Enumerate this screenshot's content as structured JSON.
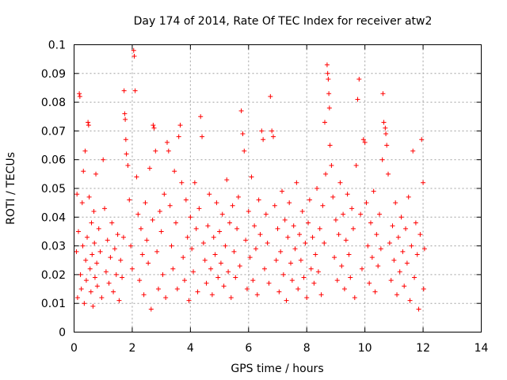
{
  "chart_data": {
    "type": "scatter",
    "title": "Day 174 of 2014, Rate Of TEC Index for receiver atw2",
    "xlabel": "GPS time / hours",
    "ylabel": "ROTI / TECUs",
    "xlim": [
      0,
      14
    ],
    "ylim": [
      0,
      0.1
    ],
    "xticks": [
      0,
      2,
      4,
      6,
      8,
      10,
      12,
      14
    ],
    "xtick_labels": [
      "0",
      "2",
      "4",
      "6",
      "8",
      "10",
      "12",
      "14"
    ],
    "yticks": [
      0,
      0.01,
      0.02,
      0.03,
      0.04,
      0.05,
      0.06,
      0.07,
      0.08,
      0.09,
      0.1
    ],
    "ytick_labels": [
      "0",
      "0.01",
      "0.02",
      "0.03",
      "0.04",
      "0.05",
      "0.06",
      "0.07",
      "0.08",
      "0.09",
      "0.1"
    ],
    "grid": true,
    "marker": "+",
    "color": "#ff0000",
    "series": [
      {
        "name": "ROTI",
        "points": [
          [
            0.08,
            0.028
          ],
          [
            0.1,
            0.048
          ],
          [
            0.12,
            0.012
          ],
          [
            0.15,
            0.035
          ],
          [
            0.18,
            0.083
          ],
          [
            0.2,
            0.082
          ],
          [
            0.22,
            0.02
          ],
          [
            0.25,
            0.015
          ],
          [
            0.28,
            0.045
          ],
          [
            0.3,
            0.03
          ],
          [
            0.32,
            0.056
          ],
          [
            0.35,
            0.01
          ],
          [
            0.38,
            0.063
          ],
          [
            0.4,
            0.025
          ],
          [
            0.42,
            0.018
          ],
          [
            0.45,
            0.033
          ],
          [
            0.48,
            0.073
          ],
          [
            0.5,
            0.072
          ],
          [
            0.52,
            0.047
          ],
          [
            0.55,
            0.022
          ],
          [
            0.58,
            0.014
          ],
          [
            0.6,
            0.038
          ],
          [
            0.62,
            0.027
          ],
          [
            0.65,
            0.009
          ],
          [
            0.68,
            0.042
          ],
          [
            0.7,
            0.031
          ],
          [
            0.72,
            0.019
          ],
          [
            0.75,
            0.055
          ],
          [
            0.78,
            0.024
          ],
          [
            0.8,
            0.016
          ],
          [
            0.85,
            0.036
          ],
          [
            0.9,
            0.028
          ],
          [
            0.95,
            0.012
          ],
          [
            1.0,
            0.06
          ],
          [
            1.05,
            0.043
          ],
          [
            1.1,
            0.021
          ],
          [
            1.15,
            0.032
          ],
          [
            1.2,
            0.017
          ],
          [
            1.25,
            0.026
          ],
          [
            1.3,
            0.038
          ],
          [
            1.35,
            0.014
          ],
          [
            1.4,
            0.029
          ],
          [
            1.45,
            0.02
          ],
          [
            1.5,
            0.034
          ],
          [
            1.55,
            0.011
          ],
          [
            1.6,
            0.025
          ],
          [
            1.65,
            0.019
          ],
          [
            1.7,
            0.033
          ],
          [
            1.72,
            0.084
          ],
          [
            1.74,
            0.076
          ],
          [
            1.76,
            0.074
          ],
          [
            1.78,
            0.067
          ],
          [
            1.8,
            0.062
          ],
          [
            1.85,
            0.058
          ],
          [
            1.9,
            0.046
          ],
          [
            1.95,
            0.03
          ],
          [
            2.0,
            0.022
          ],
          [
            2.05,
            0.098
          ],
          [
            2.07,
            0.096
          ],
          [
            2.1,
            0.084
          ],
          [
            2.15,
            0.054
          ],
          [
            2.2,
            0.041
          ],
          [
            2.25,
            0.018
          ],
          [
            2.3,
            0.036
          ],
          [
            2.35,
            0.027
          ],
          [
            2.4,
            0.013
          ],
          [
            2.45,
            0.045
          ],
          [
            2.5,
            0.032
          ],
          [
            2.55,
            0.024
          ],
          [
            2.6,
            0.057
          ],
          [
            2.65,
            0.008
          ],
          [
            2.7,
            0.039
          ],
          [
            2.72,
            0.072
          ],
          [
            2.75,
            0.071
          ],
          [
            2.8,
            0.063
          ],
          [
            2.85,
            0.028
          ],
          [
            2.9,
            0.015
          ],
          [
            2.95,
            0.042
          ],
          [
            3.0,
            0.035
          ],
          [
            3.05,
            0.02
          ],
          [
            3.1,
            0.048
          ],
          [
            3.15,
            0.012
          ],
          [
            3.2,
            0.066
          ],
          [
            3.25,
            0.063
          ],
          [
            3.3,
            0.044
          ],
          [
            3.35,
            0.03
          ],
          [
            3.4,
            0.022
          ],
          [
            3.45,
            0.056
          ],
          [
            3.5,
            0.038
          ],
          [
            3.55,
            0.015
          ],
          [
            3.6,
            0.068
          ],
          [
            3.65,
            0.072
          ],
          [
            3.7,
            0.052
          ],
          [
            3.75,
            0.026
          ],
          [
            3.8,
            0.018
          ],
          [
            3.85,
            0.046
          ],
          [
            3.9,
            0.033
          ],
          [
            3.95,
            0.011
          ],
          [
            4.0,
            0.04
          ],
          [
            4.05,
            0.029
          ],
          [
            4.1,
            0.021
          ],
          [
            4.15,
            0.052
          ],
          [
            4.2,
            0.036
          ],
          [
            4.25,
            0.014
          ],
          [
            4.3,
            0.043
          ],
          [
            4.35,
            0.075
          ],
          [
            4.4,
            0.068
          ],
          [
            4.45,
            0.031
          ],
          [
            4.5,
            0.025
          ],
          [
            4.55,
            0.017
          ],
          [
            4.6,
            0.037
          ],
          [
            4.65,
            0.048
          ],
          [
            4.7,
            0.022
          ],
          [
            4.75,
            0.013
          ],
          [
            4.8,
            0.033
          ],
          [
            4.85,
            0.027
          ],
          [
            4.9,
            0.045
          ],
          [
            4.95,
            0.019
          ],
          [
            5.0,
            0.035
          ],
          [
            5.05,
            0.024
          ],
          [
            5.1,
            0.041
          ],
          [
            5.15,
            0.016
          ],
          [
            5.2,
            0.03
          ],
          [
            5.25,
            0.053
          ],
          [
            5.3,
            0.021
          ],
          [
            5.35,
            0.038
          ],
          [
            5.4,
            0.012
          ],
          [
            5.45,
            0.044
          ],
          [
            5.5,
            0.028
          ],
          [
            5.55,
            0.019
          ],
          [
            5.6,
            0.036
          ],
          [
            5.65,
            0.047
          ],
          [
            5.7,
            0.023
          ],
          [
            5.75,
            0.077
          ],
          [
            5.8,
            0.069
          ],
          [
            5.85,
            0.063
          ],
          [
            5.9,
            0.032
          ],
          [
            5.95,
            0.015
          ],
          [
            6.0,
            0.042
          ],
          [
            6.05,
            0.026
          ],
          [
            6.1,
            0.054
          ],
          [
            6.15,
            0.018
          ],
          [
            6.2,
            0.037
          ],
          [
            6.25,
            0.029
          ],
          [
            6.3,
            0.013
          ],
          [
            6.35,
            0.046
          ],
          [
            6.4,
            0.034
          ],
          [
            6.45,
            0.07
          ],
          [
            6.5,
            0.067
          ],
          [
            6.55,
            0.022
          ],
          [
            6.6,
            0.041
          ],
          [
            6.65,
            0.031
          ],
          [
            6.7,
            0.017
          ],
          [
            6.75,
            0.082
          ],
          [
            6.8,
            0.07
          ],
          [
            6.85,
            0.068
          ],
          [
            6.9,
            0.044
          ],
          [
            6.95,
            0.025
          ],
          [
            7.0,
            0.036
          ],
          [
            7.05,
            0.014
          ],
          [
            7.1,
            0.028
          ],
          [
            7.15,
            0.049
          ],
          [
            7.2,
            0.02
          ],
          [
            7.25,
            0.039
          ],
          [
            7.3,
            0.011
          ],
          [
            7.35,
            0.033
          ],
          [
            7.4,
            0.045
          ],
          [
            7.45,
            0.024
          ],
          [
            7.5,
            0.018
          ],
          [
            7.55,
            0.037
          ],
          [
            7.6,
            0.029
          ],
          [
            7.65,
            0.052
          ],
          [
            7.7,
            0.015
          ],
          [
            7.75,
            0.034
          ],
          [
            7.8,
            0.025
          ],
          [
            7.85,
            0.042
          ],
          [
            7.9,
            0.019
          ],
          [
            7.95,
            0.031
          ],
          [
            8.0,
            0.012
          ],
          [
            8.05,
            0.038
          ],
          [
            8.1,
            0.046
          ],
          [
            8.15,
            0.022
          ],
          [
            8.2,
            0.033
          ],
          [
            8.25,
            0.017
          ],
          [
            8.3,
            0.027
          ],
          [
            8.35,
            0.05
          ],
          [
            8.4,
            0.021
          ],
          [
            8.45,
            0.036
          ],
          [
            8.5,
            0.013
          ],
          [
            8.55,
            0.044
          ],
          [
            8.6,
            0.031
          ],
          [
            8.62,
            0.073
          ],
          [
            8.65,
            0.055
          ],
          [
            8.7,
            0.093
          ],
          [
            8.72,
            0.09
          ],
          [
            8.74,
            0.088
          ],
          [
            8.76,
            0.083
          ],
          [
            8.78,
            0.078
          ],
          [
            8.8,
            0.065
          ],
          [
            8.85,
            0.058
          ],
          [
            8.9,
            0.047
          ],
          [
            8.95,
            0.026
          ],
          [
            9.0,
            0.039
          ],
          [
            9.05,
            0.018
          ],
          [
            9.1,
            0.034
          ],
          [
            9.15,
            0.052
          ],
          [
            9.2,
            0.023
          ],
          [
            9.25,
            0.041
          ],
          [
            9.3,
            0.015
          ],
          [
            9.35,
            0.032
          ],
          [
            9.4,
            0.048
          ],
          [
            9.45,
            0.027
          ],
          [
            9.5,
            0.019
          ],
          [
            9.55,
            0.043
          ],
          [
            9.6,
            0.036
          ],
          [
            9.65,
            0.012
          ],
          [
            9.7,
            0.058
          ],
          [
            9.75,
            0.081
          ],
          [
            9.8,
            0.088
          ],
          [
            9.85,
            0.041
          ],
          [
            9.9,
            0.022
          ],
          [
            9.95,
            0.067
          ],
          [
            10.0,
            0.066
          ],
          [
            10.05,
            0.045
          ],
          [
            10.1,
            0.03
          ],
          [
            10.15,
            0.017
          ],
          [
            10.2,
            0.038
          ],
          [
            10.25,
            0.026
          ],
          [
            10.3,
            0.049
          ],
          [
            10.35,
            0.014
          ],
          [
            10.4,
            0.034
          ],
          [
            10.45,
            0.023
          ],
          [
            10.5,
            0.041
          ],
          [
            10.55,
            0.029
          ],
          [
            10.6,
            0.06
          ],
          [
            10.62,
            0.083
          ],
          [
            10.65,
            0.073
          ],
          [
            10.7,
            0.071
          ],
          [
            10.72,
            0.069
          ],
          [
            10.75,
            0.065
          ],
          [
            10.8,
            0.055
          ],
          [
            10.85,
            0.031
          ],
          [
            10.9,
            0.018
          ],
          [
            10.95,
            0.037
          ],
          [
            11.0,
            0.025
          ],
          [
            11.05,
            0.045
          ],
          [
            11.1,
            0.013
          ],
          [
            11.15,
            0.033
          ],
          [
            11.2,
            0.021
          ],
          [
            11.25,
            0.04
          ],
          [
            11.3,
            0.028
          ],
          [
            11.35,
            0.016
          ],
          [
            11.4,
            0.036
          ],
          [
            11.45,
            0.024
          ],
          [
            11.5,
            0.047
          ],
          [
            11.55,
            0.011
          ],
          [
            11.6,
            0.03
          ],
          [
            11.65,
            0.063
          ],
          [
            11.7,
            0.019
          ],
          [
            11.75,
            0.038
          ],
          [
            11.8,
            0.027
          ],
          [
            11.85,
            0.008
          ],
          [
            11.9,
            0.034
          ],
          [
            11.95,
            0.067
          ],
          [
            12.0,
            0.052
          ],
          [
            12.02,
            0.015
          ],
          [
            12.05,
            0.029
          ]
        ]
      }
    ]
  }
}
